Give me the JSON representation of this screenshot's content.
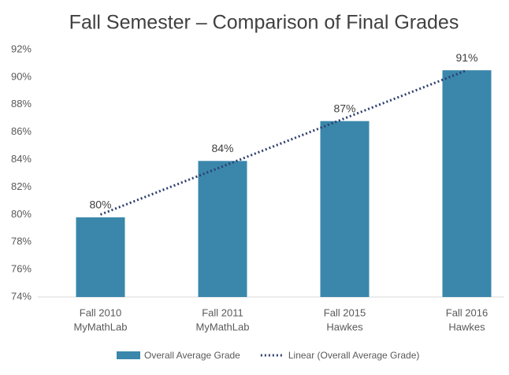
{
  "chart_data": {
    "type": "bar",
    "title": "Fall Semester – Comparison of Final Grades",
    "categories": [
      [
        "Fall 2010",
        "MyMathLab"
      ],
      [
        "Fall 2011",
        "MyMathLab"
      ],
      [
        "Fall 2015",
        "Hawkes"
      ],
      [
        "Fall 2016",
        "Hawkes"
      ]
    ],
    "series": [
      {
        "name": "Overall Average Grade",
        "color": "#3a87ab",
        "values": [
          79.8,
          83.9,
          86.8,
          90.5
        ],
        "value_labels": [
          "80%",
          "84%",
          "87%",
          "91%"
        ]
      },
      {
        "name": "Linear (Overall Average Grade)",
        "color": "#2e3f6e",
        "type": "line",
        "dotted": true,
        "values": [
          80.0,
          83.5,
          87.0,
          90.5
        ]
      }
    ],
    "ylim": [
      74,
      92
    ],
    "yticks": [
      {
        "value": 74,
        "label": "74%"
      },
      {
        "value": 76,
        "label": "76%"
      },
      {
        "value": 78,
        "label": "78%"
      },
      {
        "value": 80,
        "label": "80%"
      },
      {
        "value": 82,
        "label": "82%"
      },
      {
        "value": 84,
        "label": "84%"
      },
      {
        "value": 86,
        "label": "86%"
      },
      {
        "value": 88,
        "label": "88%"
      },
      {
        "value": 90,
        "label": "90%"
      },
      {
        "value": 92,
        "label": "92%"
      }
    ],
    "grid": false,
    "legend": "bottom"
  }
}
